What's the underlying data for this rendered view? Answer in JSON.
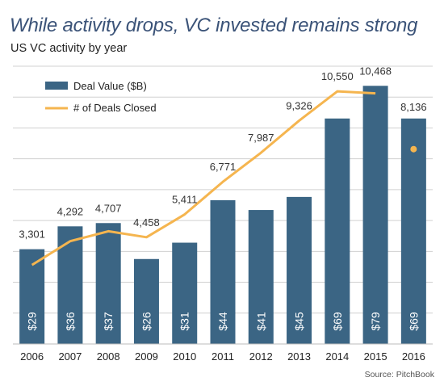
{
  "title": "While activity drops, VC invested remains strong",
  "subtitle": "US VC activity by year",
  "source": "Source: PitchBook",
  "colors": {
    "bar": "#3b6584",
    "line": "#f5b54f",
    "grid": "#d0d0d0",
    "title": "#3b5378",
    "bar_label": "#ffffff",
    "axis_text": "#222222",
    "data_label": "#333333"
  },
  "chart_data": {
    "type": "bar",
    "title": "While activity drops, VC invested remains strong",
    "categories": [
      "2006",
      "2007",
      "2008",
      "2009",
      "2010",
      "2011",
      "2012",
      "2013",
      "2014",
      "2015",
      "2016"
    ],
    "bar_label_prefix": "$",
    "series": [
      {
        "name": "Deal Value ($B)",
        "type": "bar",
        "axis": "left",
        "values": [
          29,
          36,
          37,
          26,
          31,
          44,
          41,
          45,
          69,
          79,
          69
        ]
      },
      {
        "name": "# of Deals Closed",
        "type": "line",
        "axis": "right",
        "values": [
          3301,
          4292,
          4707,
          4458,
          5411,
          6771,
          7987,
          9326,
          10550,
          10468,
          8136
        ],
        "value_labels": [
          "3,301",
          "4,292",
          "4,707",
          "4,458",
          "5,411",
          "6,771",
          "7,987",
          "9,326",
          "10,550",
          "10,468",
          "8,136"
        ],
        "line_points": 10,
        "last_point_marker": true
      }
    ],
    "left_axis_range": [
      0,
      85
    ],
    "right_axis_range": [
      0,
      11600
    ],
    "axis_tick_labels_visible": false,
    "grid": true,
    "legend_position": "top-left"
  }
}
